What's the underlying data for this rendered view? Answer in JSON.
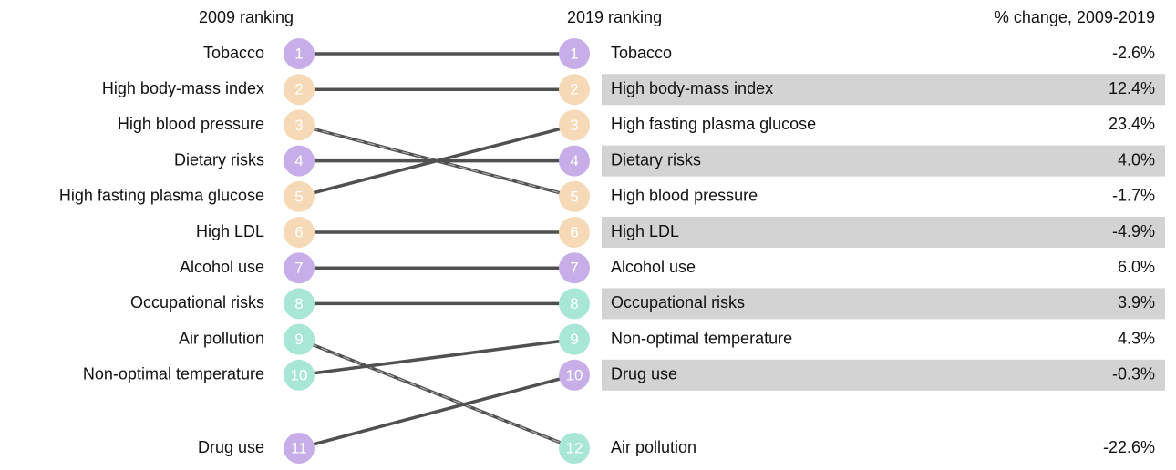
{
  "headers": {
    "left": "2009 ranking",
    "middle": "2019 ranking",
    "right": "% change, 2009-2019"
  },
  "risks": [
    {
      "name": "Tobacco",
      "rank_2009": 1,
      "rank_2019": 1,
      "change": "-2.6%",
      "color": "#c8aee8"
    },
    {
      "name": "High body-mass index",
      "rank_2009": 2,
      "rank_2019": 2,
      "change": "12.4%",
      "color": "#f6d9b6"
    },
    {
      "name": "High blood pressure",
      "rank_2009": 3,
      "rank_2019": 5,
      "change": "-1.7%",
      "color": "#f6d9b6"
    },
    {
      "name": "Dietary risks",
      "rank_2009": 4,
      "rank_2019": 4,
      "change": "4.0%",
      "color": "#c8aee8"
    },
    {
      "name": "High fasting plasma glucose",
      "rank_2009": 5,
      "rank_2019": 3,
      "change": "23.4%",
      "color": "#f6d9b6"
    },
    {
      "name": "High LDL",
      "rank_2009": 6,
      "rank_2019": 6,
      "change": "-4.9%",
      "color": "#f6d9b6"
    },
    {
      "name": "Alcohol use",
      "rank_2009": 7,
      "rank_2019": 7,
      "change": "6.0%",
      "color": "#c8aee8"
    },
    {
      "name": "Occupational risks",
      "rank_2009": 8,
      "rank_2019": 8,
      "change": "3.9%",
      "color": "#a8e6d6"
    },
    {
      "name": "Air pollution",
      "rank_2009": 9,
      "rank_2019": 12,
      "change": "-22.6%",
      "color": "#a8e6d6"
    },
    {
      "name": "Non-optimal temperature",
      "rank_2009": 10,
      "rank_2019": 9,
      "change": "4.3%",
      "color": "#a8e6d6"
    },
    {
      "name": "Drug use",
      "rank_2009": 11,
      "rank_2019": 10,
      "change": "-0.3%",
      "color": "#c8aee8"
    }
  ]
}
